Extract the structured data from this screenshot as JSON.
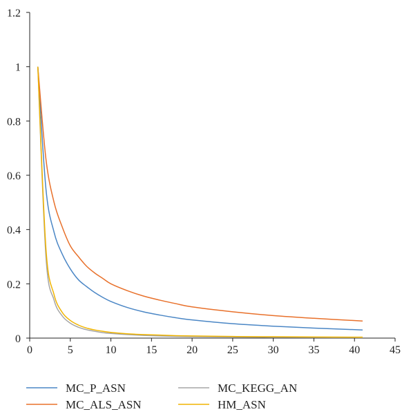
{
  "chart_data": {
    "type": "line",
    "title": "",
    "xlabel": "",
    "ylabel": "",
    "xlim": [
      0,
      45
    ],
    "ylim": [
      0,
      1.2
    ],
    "x_ticks": [
      "0",
      "5",
      "10",
      "15",
      "20",
      "25",
      "30",
      "35",
      "40",
      "45"
    ],
    "y_ticks": [
      "0",
      "0.2",
      "0.4",
      "0.6",
      "0.8",
      "1",
      "1.2"
    ],
    "grid": false,
    "legend_position": "bottom",
    "x": [
      1,
      2,
      3,
      4,
      5,
      6,
      7,
      8,
      9,
      10,
      12,
      14,
      16,
      18,
      20,
      25,
      30,
      35,
      41
    ],
    "series": [
      {
        "name": "MC_P_ASN",
        "color": "#4a86c5",
        "values": [
          1.0,
          0.55,
          0.39,
          0.31,
          0.255,
          0.215,
          0.19,
          0.168,
          0.15,
          0.135,
          0.113,
          0.097,
          0.085,
          0.075,
          0.067,
          0.053,
          0.044,
          0.037,
          0.03
        ]
      },
      {
        "name": "MC_ALS_ASN",
        "color": "#e8702a",
        "values": [
          1.0,
          0.66,
          0.5,
          0.41,
          0.34,
          0.3,
          0.265,
          0.24,
          0.22,
          0.2,
          0.175,
          0.155,
          0.14,
          0.127,
          0.115,
          0.097,
          0.083,
          0.073,
          0.063
        ]
      },
      {
        "name": "MC_KEGG_AN",
        "color": "#a5a5a5",
        "values": [
          1.0,
          0.3,
          0.14,
          0.082,
          0.055,
          0.04,
          0.031,
          0.025,
          0.02,
          0.017,
          0.013,
          0.01,
          0.008,
          0.0065,
          0.0055,
          0.004,
          0.003,
          0.0025,
          0.002
        ]
      },
      {
        "name": "HM_ASN",
        "color": "#f0b400",
        "values": [
          1.0,
          0.33,
          0.16,
          0.095,
          0.065,
          0.048,
          0.037,
          0.03,
          0.025,
          0.021,
          0.016,
          0.013,
          0.011,
          0.009,
          0.008,
          0.006,
          0.005,
          0.004,
          0.0035
        ]
      }
    ]
  }
}
